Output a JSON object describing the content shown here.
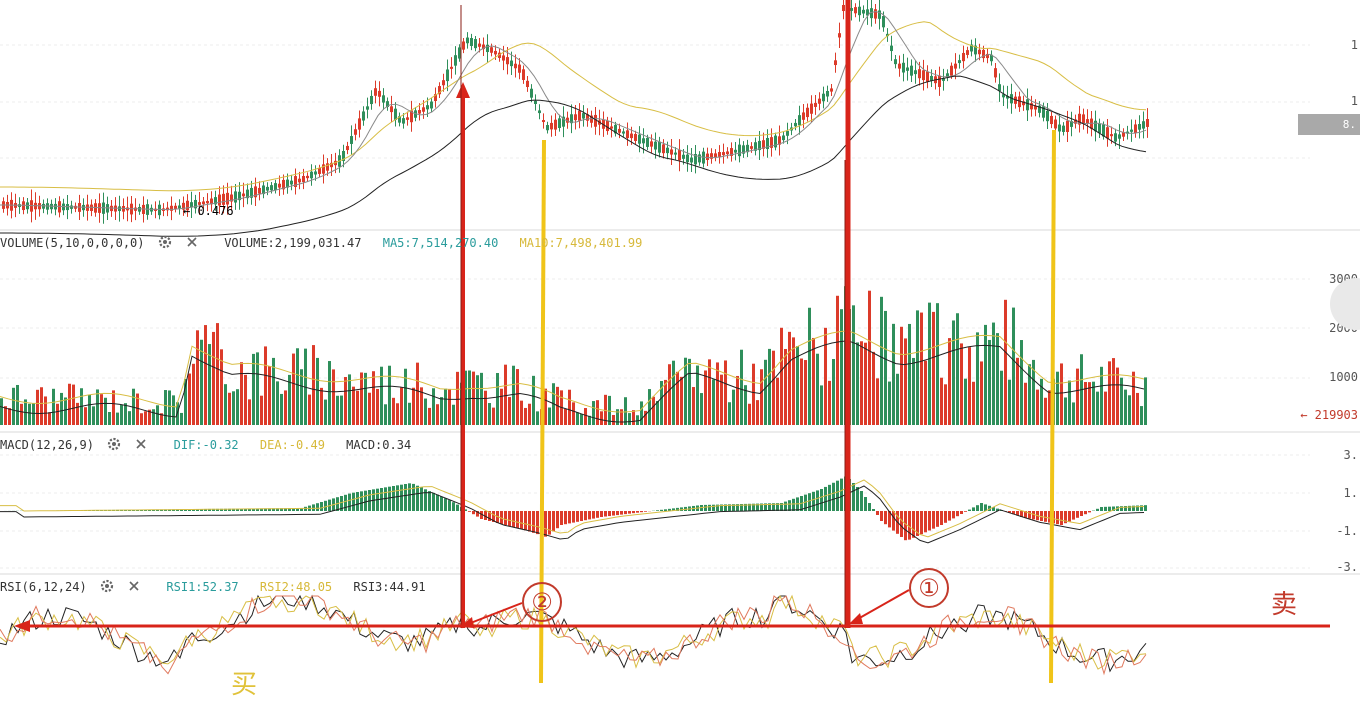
{
  "colors": {
    "up": "#2f8f5b",
    "down": "#dc3b2a",
    "ma_gray": "#8a8a8a",
    "ma_yellow": "#d8be45",
    "ma_black": "#222222",
    "annotation_red": "#d8241a",
    "annotation_yellow": "#f0c419"
  },
  "price_panel": {
    "low_marker": "0.476",
    "last_price_tag": "8.",
    "right_ticks": [
      "1",
      "1"
    ]
  },
  "volume_panel": {
    "indicator": "VOLUME(5,10,0,0,0,0)",
    "volume": "VOLUME:2,199,031.47",
    "ma5": "MA5:7,514,270.40",
    "ma10": "MA10:7,498,401.99",
    "axis": [
      "3000",
      "2000",
      "1000",
      "← 219903"
    ],
    "settings_icon": "gear-icon",
    "close_icon": "close-icon"
  },
  "macd_panel": {
    "indicator": "MACD(12,26,9)",
    "dif": "DIF:-0.32",
    "dea": "DEA:-0.49",
    "macd": "MACD:0.34",
    "axis": [
      "3.",
      "1.",
      "-1.",
      "-3."
    ],
    "settings_icon": "gear-icon",
    "close_icon": "close-icon"
  },
  "rsi_panel": {
    "indicator": "RSI(6,12,24)",
    "rsi1": "RSI1:52.37",
    "rsi2": "RSI2:48.05",
    "rsi3": "RSI3:44.91",
    "settings_icon": "gear-icon",
    "close_icon": "close-icon"
  },
  "annotations": {
    "marker_1": "①",
    "marker_2": "②",
    "sell_text": "卖",
    "buy_text_partial": "买"
  },
  "chart_data": {
    "type": "candlestick",
    "series": [
      {
        "name": "VOLUME",
        "values": [
          2199031.47
        ]
      },
      {
        "name": "MA5",
        "values": [
          7514270.4
        ]
      },
      {
        "name": "MA10",
        "values": [
          7498401.99
        ]
      },
      {
        "name": "DIF",
        "values": [
          -0.32
        ]
      },
      {
        "name": "DEA",
        "values": [
          -0.49
        ]
      },
      {
        "name": "MACD",
        "values": [
          0.34
        ]
      },
      {
        "name": "RSI1",
        "values": [
          52.37
        ]
      },
      {
        "name": "RSI2",
        "values": [
          48.05
        ]
      },
      {
        "name": "RSI3",
        "values": [
          44.91
        ]
      }
    ]
  }
}
